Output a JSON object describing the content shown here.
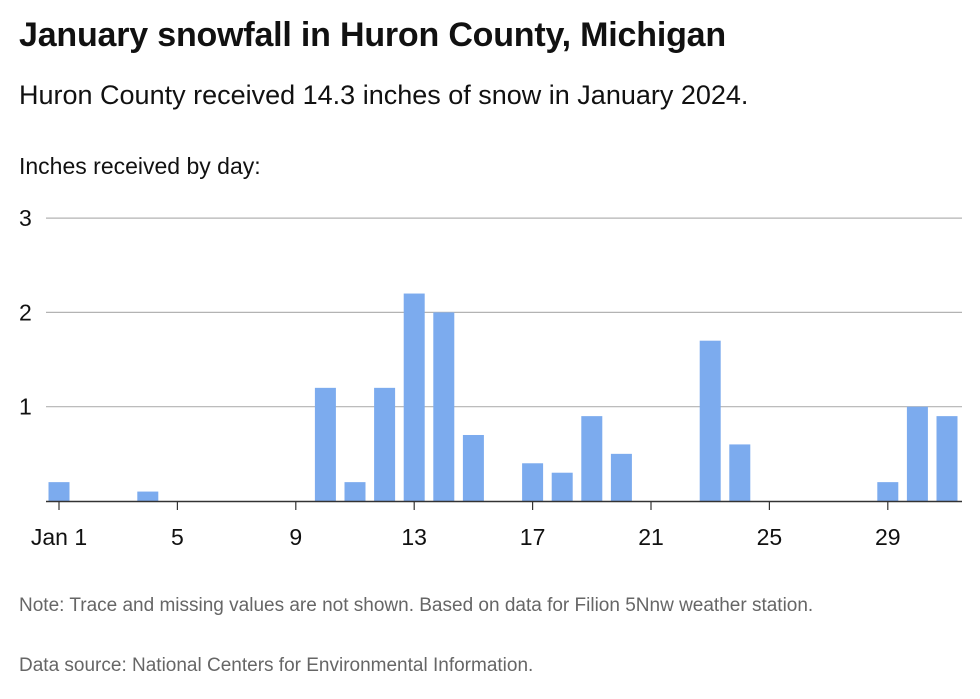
{
  "title": "January snowfall in Huron County, Michigan",
  "subtitle": "Huron County received 14.3 inches of snow in January 2024.",
  "ylabel": "Inches received by day:",
  "note": "Note: Trace and missing values are not shown. Based on data for Filion 5Nnw weather station.",
  "source": "Data source: National Centers for Environmental Information.",
  "colors": {
    "bar": "#7cabee",
    "grid": "#b3b3b3",
    "axis": "#333333"
  },
  "chart_data": {
    "type": "bar",
    "ylim": [
      0,
      3
    ],
    "yticks": [
      1,
      2,
      3
    ],
    "grid": true,
    "x_tick_labels": [
      {
        "day": 1,
        "label": "Jan 1"
      },
      {
        "day": 5,
        "label": "5"
      },
      {
        "day": 9,
        "label": "9"
      },
      {
        "day": 13,
        "label": "13"
      },
      {
        "day": 17,
        "label": "17"
      },
      {
        "day": 21,
        "label": "21"
      },
      {
        "day": 25,
        "label": "25"
      },
      {
        "day": 29,
        "label": "29"
      }
    ],
    "days": [
      1,
      2,
      3,
      4,
      5,
      6,
      7,
      8,
      9,
      10,
      11,
      12,
      13,
      14,
      15,
      16,
      17,
      18,
      19,
      20,
      21,
      22,
      23,
      24,
      25,
      26,
      27,
      28,
      29,
      30,
      31
    ],
    "values": [
      0.2,
      0,
      0,
      0.1,
      0,
      0,
      0,
      0,
      0,
      1.2,
      0.2,
      1.2,
      2.2,
      2.0,
      0.7,
      0,
      0.4,
      0.3,
      0.9,
      0.5,
      0,
      0,
      1.7,
      0.6,
      0,
      0,
      0,
      0,
      0.2,
      1.0,
      0.9
    ]
  }
}
